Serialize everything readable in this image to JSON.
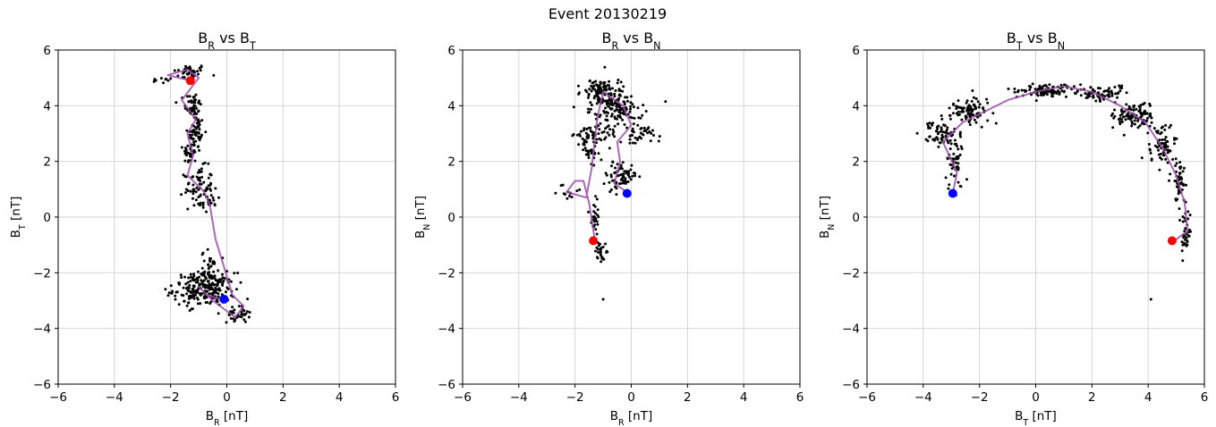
{
  "suptitle": "Event 20130219",
  "colors": {
    "scatter": "#000000",
    "path": "#9b4fa8",
    "start": "#ff0000",
    "end": "#0000ff",
    "grid": "#d0d0d0"
  },
  "chart_data": [
    {
      "type": "scatter",
      "title": {
        "base": "B",
        "sub1": "R",
        "mid": " vs B",
        "sub2": "T"
      },
      "xlabel": {
        "base": "B",
        "sub": "R",
        "unit": " [nT]"
      },
      "ylabel": {
        "base": "B",
        "sub": "T",
        "unit": " [nT]"
      },
      "xlim": [
        -6,
        6
      ],
      "ylim": [
        -6,
        6
      ],
      "xticks": [
        -6,
        -4,
        -2,
        0,
        2,
        4,
        6
      ],
      "yticks": [
        -6,
        -4,
        -2,
        0,
        2,
        4,
        6
      ],
      "xticklabels": [
        "−6",
        "−4",
        "−2",
        "0",
        "2",
        "4",
        "6"
      ],
      "yticklabels": [
        "−6",
        "−4",
        "−2",
        "0",
        "2",
        "4",
        "6"
      ],
      "grid": true,
      "clusters": [
        {
          "cx": -1.3,
          "cy": 5.2,
          "sx": 0.3,
          "sy": 0.15,
          "n": 40
        },
        {
          "cx": -2.3,
          "cy": 4.9,
          "sx": 0.2,
          "sy": 0.05,
          "n": 12
        },
        {
          "cx": -1.2,
          "cy": 4.0,
          "sx": 0.15,
          "sy": 0.25,
          "n": 50
        },
        {
          "cx": -1.1,
          "cy": 3.0,
          "sx": 0.15,
          "sy": 0.35,
          "n": 60
        },
        {
          "cx": -1.3,
          "cy": 2.3,
          "sx": 0.12,
          "sy": 0.2,
          "n": 30
        },
        {
          "cx": -1.0,
          "cy": 1.1,
          "sx": 0.25,
          "sy": 0.35,
          "n": 70
        },
        {
          "cx": -0.6,
          "cy": 0.5,
          "sx": 0.2,
          "sy": 0.2,
          "n": 20
        },
        {
          "cx": -0.8,
          "cy": -2.6,
          "sx": 0.55,
          "sy": 0.3,
          "n": 220
        },
        {
          "cx": -0.6,
          "cy": -2.0,
          "sx": 0.15,
          "sy": 0.4,
          "n": 50
        },
        {
          "cx": 0.4,
          "cy": -3.5,
          "sx": 0.2,
          "sy": 0.15,
          "n": 35
        }
      ],
      "path": [
        [
          -1.3,
          4.9
        ],
        [
          -2.1,
          5.1
        ],
        [
          -1.4,
          5.3
        ],
        [
          -1.0,
          5.0
        ],
        [
          -1.6,
          4.2
        ],
        [
          -1.1,
          3.5
        ],
        [
          -1.4,
          3.0
        ],
        [
          -1.2,
          2.2
        ],
        [
          -1.4,
          1.5
        ],
        [
          -0.8,
          0.9
        ],
        [
          -0.6,
          0.4
        ],
        [
          -0.4,
          -0.8
        ],
        [
          -0.1,
          -1.8
        ],
        [
          0.2,
          -2.8
        ],
        [
          0.6,
          -3.2
        ],
        [
          0.3,
          -3.6
        ],
        [
          -0.5,
          -3.0
        ],
        [
          -1.0,
          -2.5
        ],
        [
          -0.7,
          -2.8
        ],
        [
          -0.1,
          -3.0
        ]
      ],
      "start": [
        -1.3,
        4.9
      ],
      "end": [
        -0.1,
        -2.95
      ]
    },
    {
      "type": "scatter",
      "title": {
        "base": "B",
        "sub1": "R",
        "mid": " vs B",
        "sub2": "N"
      },
      "xlabel": {
        "base": "B",
        "sub": "R",
        "unit": " [nT]"
      },
      "ylabel": {
        "base": "B",
        "sub": "N",
        "unit": " [nT]"
      },
      "xlim": [
        -6,
        6
      ],
      "ylim": [
        -6,
        6
      ],
      "xticks": [
        -6,
        -4,
        -2,
        0,
        2,
        4,
        6
      ],
      "yticks": [
        -6,
        -4,
        -2,
        0,
        2,
        4,
        6
      ],
      "xticklabels": [
        "−6",
        "−4",
        "−2",
        "0",
        "2",
        "4",
        "6"
      ],
      "yticklabels": [
        "−6",
        "−4",
        "−2",
        "0",
        "2",
        "4",
        "6"
      ],
      "grid": true,
      "clusters": [
        {
          "cx": -1.0,
          "cy": 4.5,
          "sx": 0.35,
          "sy": 0.25,
          "n": 110
        },
        {
          "cx": -0.6,
          "cy": 3.8,
          "sx": 0.45,
          "sy": 0.25,
          "n": 110
        },
        {
          "cx": 0.3,
          "cy": 3.0,
          "sx": 0.3,
          "sy": 0.2,
          "n": 40
        },
        {
          "cx": -1.4,
          "cy": 2.9,
          "sx": 0.4,
          "sy": 0.2,
          "n": 60
        },
        {
          "cx": -1.5,
          "cy": 2.3,
          "sx": 0.15,
          "sy": 0.2,
          "n": 25
        },
        {
          "cx": -0.4,
          "cy": 1.5,
          "sx": 0.3,
          "sy": 0.25,
          "n": 70
        },
        {
          "cx": -2.2,
          "cy": 0.9,
          "sx": 0.2,
          "sy": 0.15,
          "n": 14
        },
        {
          "cx": -1.3,
          "cy": 0.0,
          "sx": 0.1,
          "sy": 0.4,
          "n": 25
        },
        {
          "cx": -1.1,
          "cy": -1.2,
          "sx": 0.15,
          "sy": 0.25,
          "n": 25
        }
      ],
      "extra_points": [
        [
          -1.0,
          -2.95
        ]
      ],
      "path": [
        [
          -1.3,
          -0.8
        ],
        [
          -1.5,
          0.5
        ],
        [
          -1.7,
          1.3
        ],
        [
          -2.0,
          1.3
        ],
        [
          -2.3,
          0.9
        ],
        [
          -1.6,
          0.7
        ],
        [
          -1.4,
          1.8
        ],
        [
          -1.3,
          2.8
        ],
        [
          -1.2,
          3.6
        ],
        [
          -1.0,
          4.5
        ],
        [
          -0.3,
          4.0
        ],
        [
          0.0,
          3.3
        ],
        [
          -0.5,
          2.7
        ],
        [
          -0.4,
          2.0
        ],
        [
          -0.6,
          1.2
        ],
        [
          -0.3,
          1.0
        ],
        [
          -0.15,
          0.85
        ]
      ],
      "start": [
        -1.35,
        -0.85
      ],
      "end": [
        -0.15,
        0.85
      ]
    },
    {
      "type": "scatter",
      "title": {
        "base": "B",
        "sub1": "T",
        "mid": " vs B",
        "sub2": "N"
      },
      "xlabel": {
        "base": "B",
        "sub": "T",
        "unit": " [nT]"
      },
      "ylabel": {
        "base": "B",
        "sub": "N",
        "unit": " [nT]"
      },
      "xlim": [
        -6,
        6
      ],
      "ylim": [
        -6,
        6
      ],
      "xticks": [
        -6,
        -4,
        -2,
        0,
        2,
        4,
        6
      ],
      "yticks": [
        -6,
        -4,
        -2,
        0,
        2,
        4,
        6
      ],
      "xticklabels": [
        "−6",
        "−4",
        "−2",
        "0",
        "2",
        "4",
        "6"
      ],
      "yticklabels": [
        "−6",
        "−4",
        "−2",
        "0",
        "2",
        "4",
        "6"
      ],
      "grid": true,
      "clusters": [
        {
          "cx": -2.9,
          "cy": 1.7,
          "sx": 0.15,
          "sy": 0.4,
          "n": 40
        },
        {
          "cx": -3.2,
          "cy": 3.0,
          "sx": 0.35,
          "sy": 0.25,
          "n": 70
        },
        {
          "cx": -2.3,
          "cy": 3.8,
          "sx": 0.35,
          "sy": 0.25,
          "n": 90
        },
        {
          "cx": 0.5,
          "cy": 4.55,
          "sx": 0.55,
          "sy": 0.12,
          "n": 100
        },
        {
          "cx": 2.3,
          "cy": 4.4,
          "sx": 0.4,
          "sy": 0.15,
          "n": 70
        },
        {
          "cx": 3.5,
          "cy": 3.6,
          "sx": 0.35,
          "sy": 0.25,
          "n": 100
        },
        {
          "cx": 4.5,
          "cy": 2.5,
          "sx": 0.25,
          "sy": 0.35,
          "n": 70
        },
        {
          "cx": 5.1,
          "cy": 1.3,
          "sx": 0.15,
          "sy": 0.4,
          "n": 45
        },
        {
          "cx": 5.3,
          "cy": -0.6,
          "sx": 0.1,
          "sy": 0.45,
          "n": 35
        }
      ],
      "extra_points": [
        [
          4.1,
          -2.95
        ]
      ],
      "path": [
        [
          -2.95,
          0.85
        ],
        [
          -2.8,
          1.6
        ],
        [
          -3.3,
          2.7
        ],
        [
          -2.6,
          3.4
        ],
        [
          -1.8,
          3.8
        ],
        [
          -1.0,
          4.2
        ],
        [
          0.0,
          4.5
        ],
        [
          1.0,
          4.7
        ],
        [
          2.0,
          4.5
        ],
        [
          3.0,
          4.0
        ],
        [
          3.9,
          3.4
        ],
        [
          4.5,
          2.5
        ],
        [
          5.0,
          1.5
        ],
        [
          5.3,
          0.5
        ],
        [
          5.4,
          -0.5
        ],
        [
          5.0,
          -0.8
        ],
        [
          4.85,
          -0.85
        ]
      ],
      "start": [
        4.85,
        -0.85
      ],
      "end": [
        -2.95,
        0.85
      ]
    }
  ]
}
